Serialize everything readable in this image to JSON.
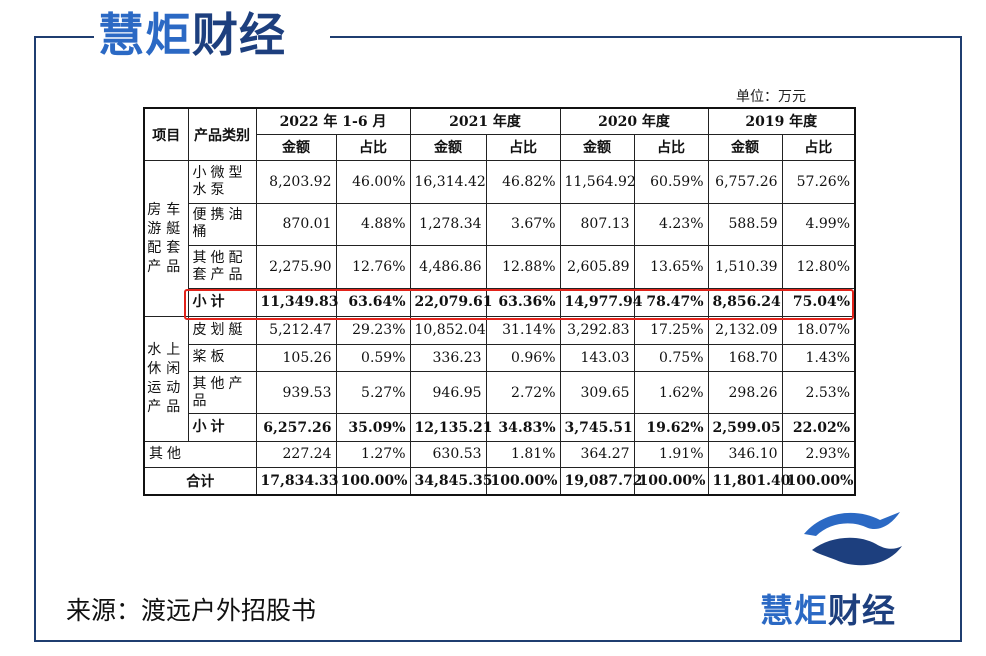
{
  "brand": {
    "part1": "慧炬",
    "part2": "财经"
  },
  "unit": "单位：万元",
  "source": "来源：渡远户外招股书",
  "headers": {
    "item": "项目",
    "category": "产品类别",
    "periods": [
      "2022 年 1-6 月",
      "2021 年度",
      "2020 年度",
      "2019 年度"
    ],
    "amount": "金额",
    "ratio": "占比"
  },
  "groups": [
    {
      "name": "房车游艇配套产品",
      "rows": [
        {
          "label": "小微型水泵",
          "values": [
            "8,203.92",
            "46.00%",
            "16,314.42",
            "46.82%",
            "11,564.92",
            "60.59%",
            "6,757.26",
            "57.26%"
          ]
        },
        {
          "label": "便携油桶",
          "values": [
            "870.01",
            "4.88%",
            "1,278.34",
            "3.67%",
            "807.13",
            "4.23%",
            "588.59",
            "4.99%"
          ]
        },
        {
          "label": "其他配套产品",
          "values": [
            "2,275.90",
            "12.76%",
            "4,486.86",
            "12.88%",
            "2,605.89",
            "13.65%",
            "1,510.39",
            "12.80%"
          ]
        }
      ],
      "subtotal": {
        "label": "小计",
        "values": [
          "11,349.83",
          "63.64%",
          "22,079.61",
          "63.36%",
          "14,977.94",
          "78.47%",
          "8,856.24",
          "75.04%"
        ]
      }
    },
    {
      "name": "水上休闲运动产品",
      "rows": [
        {
          "label": "皮划艇",
          "values": [
            "5,212.47",
            "29.23%",
            "10,852.04",
            "31.14%",
            "3,292.83",
            "17.25%",
            "2,132.09",
            "18.07%"
          ]
        },
        {
          "label": "桨板",
          "values": [
            "105.26",
            "0.59%",
            "336.23",
            "0.96%",
            "143.03",
            "0.75%",
            "168.70",
            "1.43%"
          ]
        },
        {
          "label": "其他产品",
          "values": [
            "939.53",
            "5.27%",
            "946.95",
            "2.72%",
            "309.65",
            "1.62%",
            "298.26",
            "2.53%"
          ]
        }
      ],
      "subtotal": {
        "label": "小计",
        "values": [
          "6,257.26",
          "35.09%",
          "12,135.21",
          "34.83%",
          "3,745.51",
          "19.62%",
          "2,599.05",
          "22.02%"
        ]
      }
    }
  ],
  "other": {
    "label": "其他",
    "values": [
      "227.24",
      "1.27%",
      "630.53",
      "1.81%",
      "364.27",
      "1.91%",
      "346.10",
      "2.93%"
    ]
  },
  "total": {
    "label": "合计",
    "values": [
      "17,834.33",
      "100.00%",
      "34,845.35",
      "100.00%",
      "19,087.72",
      "100.00%",
      "11,801.40",
      "100.00%"
    ]
  },
  "colors": {
    "frame": "#1f3d70",
    "brand_light": "#2b69c4",
    "brand_dark": "#1d3f7e",
    "highlight": "#e2231a"
  }
}
